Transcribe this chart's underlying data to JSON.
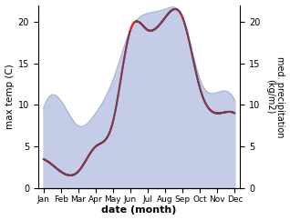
{
  "months": [
    "Jan",
    "Feb",
    "Mar",
    "Apr",
    "May",
    "Jun",
    "Jul",
    "Aug",
    "Sep",
    "Oct",
    "Nov",
    "Dec"
  ],
  "temp_max": [
    3.5,
    2.0,
    2.0,
    5.0,
    8.0,
    19.0,
    19.0,
    20.5,
    20.5,
    12.0,
    9.0,
    9.0
  ],
  "precip": [
    9.5,
    10.5,
    7.5,
    9.0,
    13.0,
    19.0,
    21.0,
    21.5,
    20.5,
    13.0,
    11.5,
    10.5
  ],
  "temp_color_inside": "#7a3b4f",
  "temp_color_outside": "#e8211a",
  "precip_fill_color": "#c5cce8",
  "precip_line_color": "#aab4d8",
  "left_ylabel": "max temp (C)",
  "right_ylabel": "med. precipitation\n(kg/m2)",
  "xlabel": "date (month)",
  "ylim": [
    0,
    22
  ],
  "yticks": [
    0,
    5,
    10,
    15,
    20
  ],
  "background_color": "#ffffff",
  "fig_width": 3.18,
  "fig_height": 2.42,
  "dpi": 100
}
